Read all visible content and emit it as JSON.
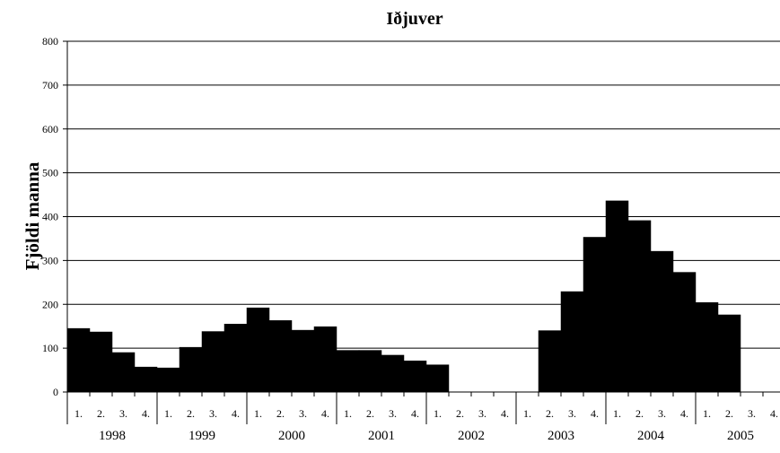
{
  "chart_data": {
    "type": "bar",
    "title": "Iðjuver",
    "xlabel": "",
    "ylabel": "Fjöldi manna",
    "ylim": [
      0,
      800
    ],
    "yticks": [
      0,
      100,
      200,
      300,
      400,
      500,
      600,
      700,
      800
    ],
    "grid": true,
    "legend": "none",
    "bar_color": "#000000",
    "years": [
      "1998",
      "1999",
      "2000",
      "2001",
      "2002",
      "2003",
      "2004",
      "2005"
    ],
    "quarter_labels": [
      "1.",
      "2.",
      "3.",
      "4."
    ],
    "values": [
      145,
      137,
      90,
      57,
      55,
      102,
      138,
      155,
      192,
      163,
      141,
      149,
      95,
      95,
      84,
      71,
      62,
      0,
      0,
      0,
      0,
      140,
      229,
      353,
      436,
      391,
      321,
      273,
      204,
      176,
      0,
      0
    ]
  }
}
